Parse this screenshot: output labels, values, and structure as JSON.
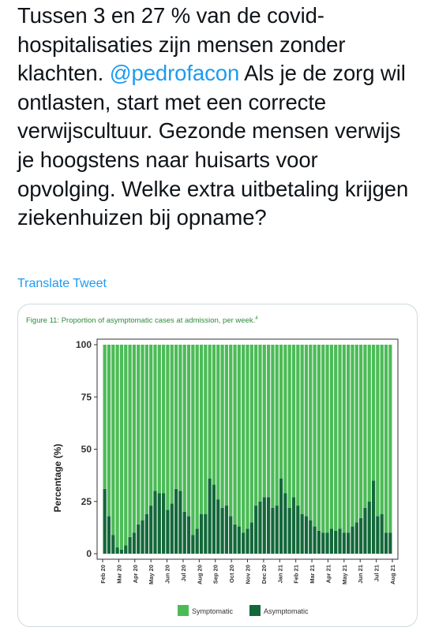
{
  "tweet": {
    "text_before": "Tussen 3 en 27 % van de covid-hospitalisaties zijn mensen zonder klachten. ",
    "mention": "@pedrofacon",
    "text_after": " Als je de zorg wil ontlasten, start met een correcte verwijscultuur. Gezonde mensen verwijs je hoogstens naar huisarts voor opvolging. Welke extra uitbetaling krijgen ziekenhuizen bij opname?",
    "translate_label": "Translate Tweet"
  },
  "colors": {
    "text": "#0f1419",
    "link": "#1d9bf0",
    "symptomatic": "#4cbb57",
    "asymptomatic": "#13683a",
    "figure_caption": "#2e8b3c"
  },
  "chart_data": {
    "type": "bar",
    "stacked": true,
    "title": "Figure 11:  Proportion of asymptomatic cases at admission, per week.",
    "title_footnote": "4",
    "xlabel": "",
    "ylabel": "Percentage (%)",
    "ylim": [
      0,
      100
    ],
    "yticks": [
      0,
      25,
      50,
      75,
      100
    ],
    "x_tick_labels": [
      "Feb 20",
      "Mar 20",
      "Apr 20",
      "May 20",
      "Jun 20",
      "Jul 20",
      "Aug 20",
      "Sep 20",
      "Oct 20",
      "Nov 20",
      "Dec 20",
      "Jan 21",
      "Feb 21",
      "Mar 21",
      "Apr 21",
      "May 21",
      "Jun 21",
      "Jul 21",
      "Aug 21"
    ],
    "legend_position": "bottom",
    "grid": false,
    "series": [
      {
        "name": "Asymptomatic",
        "values": [
          31,
          18,
          9,
          3,
          2,
          4,
          8,
          10,
          14,
          16,
          19,
          23,
          30,
          29,
          29,
          21,
          24,
          31,
          30,
          20,
          18,
          9,
          12,
          19,
          19,
          36,
          33,
          26,
          22,
          23,
          18,
          14,
          13,
          10,
          12,
          15,
          23,
          25,
          27,
          27,
          22,
          23,
          36,
          29,
          22,
          27,
          23,
          19,
          18,
          16,
          13,
          11,
          10,
          10,
          12,
          11,
          12,
          10,
          10,
          13,
          15,
          17,
          22,
          25,
          35,
          18,
          19,
          10,
          10
        ]
      },
      {
        "name": "Symptomatic",
        "values": [
          69,
          82,
          91,
          97,
          98,
          96,
          92,
          90,
          86,
          84,
          81,
          77,
          70,
          71,
          71,
          79,
          76,
          69,
          70,
          80,
          82,
          91,
          88,
          81,
          81,
          64,
          67,
          74,
          78,
          77,
          82,
          86,
          87,
          90,
          88,
          85,
          77,
          75,
          73,
          73,
          78,
          77,
          64,
          71,
          78,
          73,
          77,
          81,
          82,
          84,
          87,
          89,
          90,
          90,
          88,
          89,
          88,
          90,
          90,
          87,
          85,
          83,
          78,
          75,
          65,
          82,
          81,
          90,
          90
        ]
      }
    ]
  }
}
